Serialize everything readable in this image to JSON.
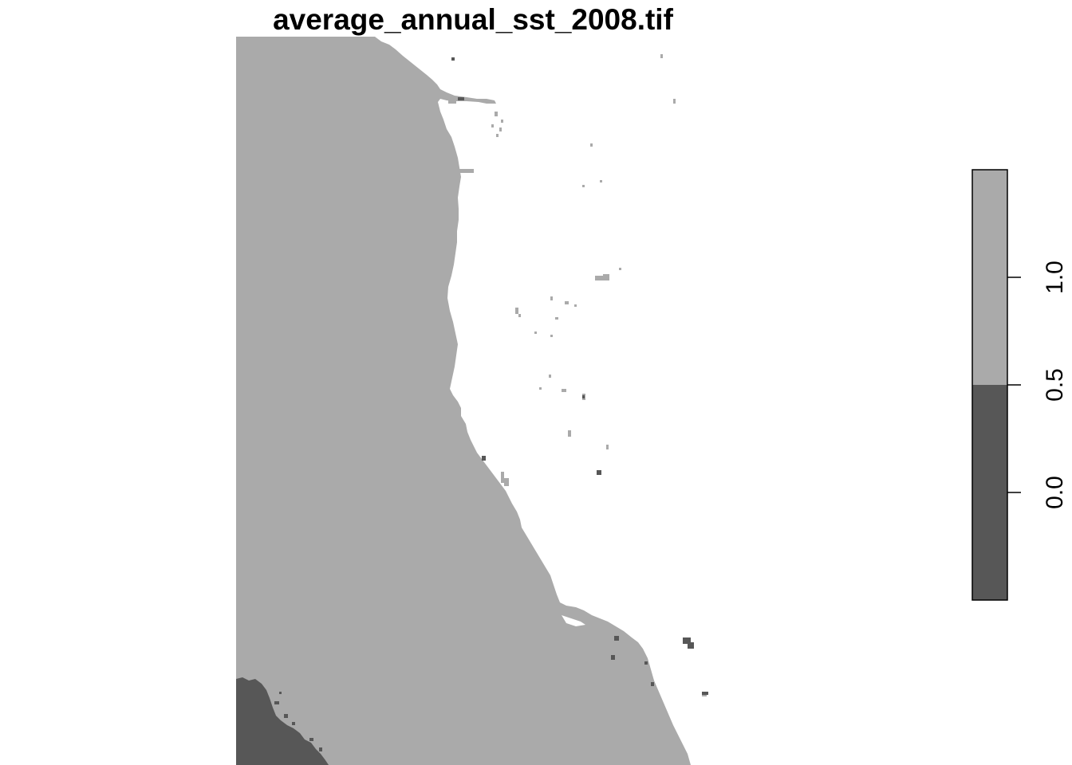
{
  "title": "average_annual_sst_2008.tif",
  "colors": {
    "value_1": "#aaaaaa",
    "value_0": "#575757",
    "background": "#ffffff",
    "frame": "#000000"
  },
  "legend": {
    "range": [
      -0.5,
      1.5
    ],
    "breaks": [
      {
        "value": 0,
        "from": -0.5,
        "to": 0.5,
        "color": "#575757"
      },
      {
        "value": 1,
        "from": 0.5,
        "to": 1.5,
        "color": "#aaaaaa"
      }
    ],
    "ticks": [
      {
        "value": 0.0,
        "label": "0.0"
      },
      {
        "value": 0.5,
        "label": "0.5"
      },
      {
        "value": 1.0,
        "label": "1.0"
      }
    ]
  }
}
